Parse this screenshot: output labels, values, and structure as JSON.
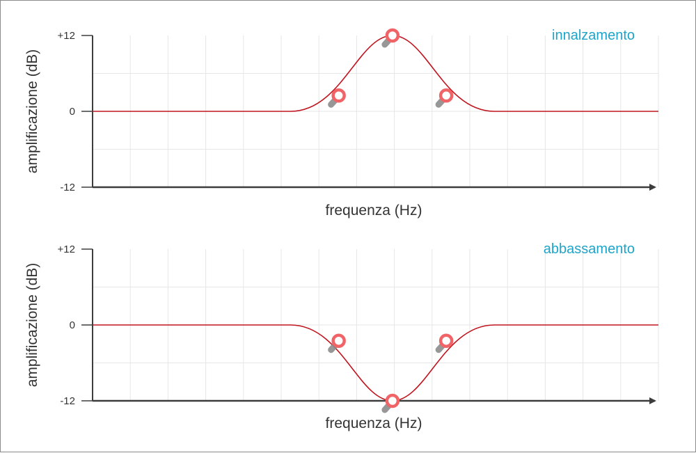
{
  "chart_data": [
    {
      "type": "line",
      "title": "innalzamento",
      "xlabel": "frequenza (Hz)",
      "ylabel": "amplificazione (dB)",
      "ylim": [
        -12,
        12
      ],
      "yticks": [
        "+12",
        "0",
        "-12"
      ],
      "grid": true,
      "series": [
        {
          "x": [
            0,
            0.35,
            0.39,
            0.44,
            0.48,
            0.53,
            0.57,
            0.62,
            0.66,
            1.0
          ],
          "values": [
            0,
            0,
            0.4,
            2.3,
            7.0,
            12,
            7.0,
            2.3,
            0,
            0
          ]
        }
      ],
      "control_points": [
        {
          "x": 0.435,
          "y": 2.5
        },
        {
          "x": 0.53,
          "y": 12
        },
        {
          "x": 0.625,
          "y": 2.5
        }
      ],
      "colors": {
        "curve": "#c0141e",
        "control_point": "#f06468",
        "shadow": "#8c8c8c",
        "title": "#1ea4c8"
      }
    },
    {
      "type": "line",
      "title": "abbassamento",
      "xlabel": "frequenza (Hz)",
      "ylabel": "amplificazione (dB)",
      "ylim": [
        -12,
        12
      ],
      "yticks": [
        "+12",
        "0",
        "-12"
      ],
      "grid": true,
      "series": [
        {
          "x": [
            0,
            0.35,
            0.39,
            0.44,
            0.48,
            0.53,
            0.57,
            0.62,
            0.66,
            1.0
          ],
          "values": [
            0,
            0,
            -0.4,
            -2.3,
            -7.0,
            -12,
            -7.0,
            -2.3,
            0,
            0
          ]
        }
      ],
      "control_points": [
        {
          "x": 0.435,
          "y": -2.5
        },
        {
          "x": 0.53,
          "y": -12
        },
        {
          "x": 0.625,
          "y": -2.5
        }
      ],
      "colors": {
        "curve": "#c0141e",
        "control_point": "#f06468",
        "shadow": "#8c8c8c",
        "title": "#1ea4c8"
      }
    }
  ]
}
